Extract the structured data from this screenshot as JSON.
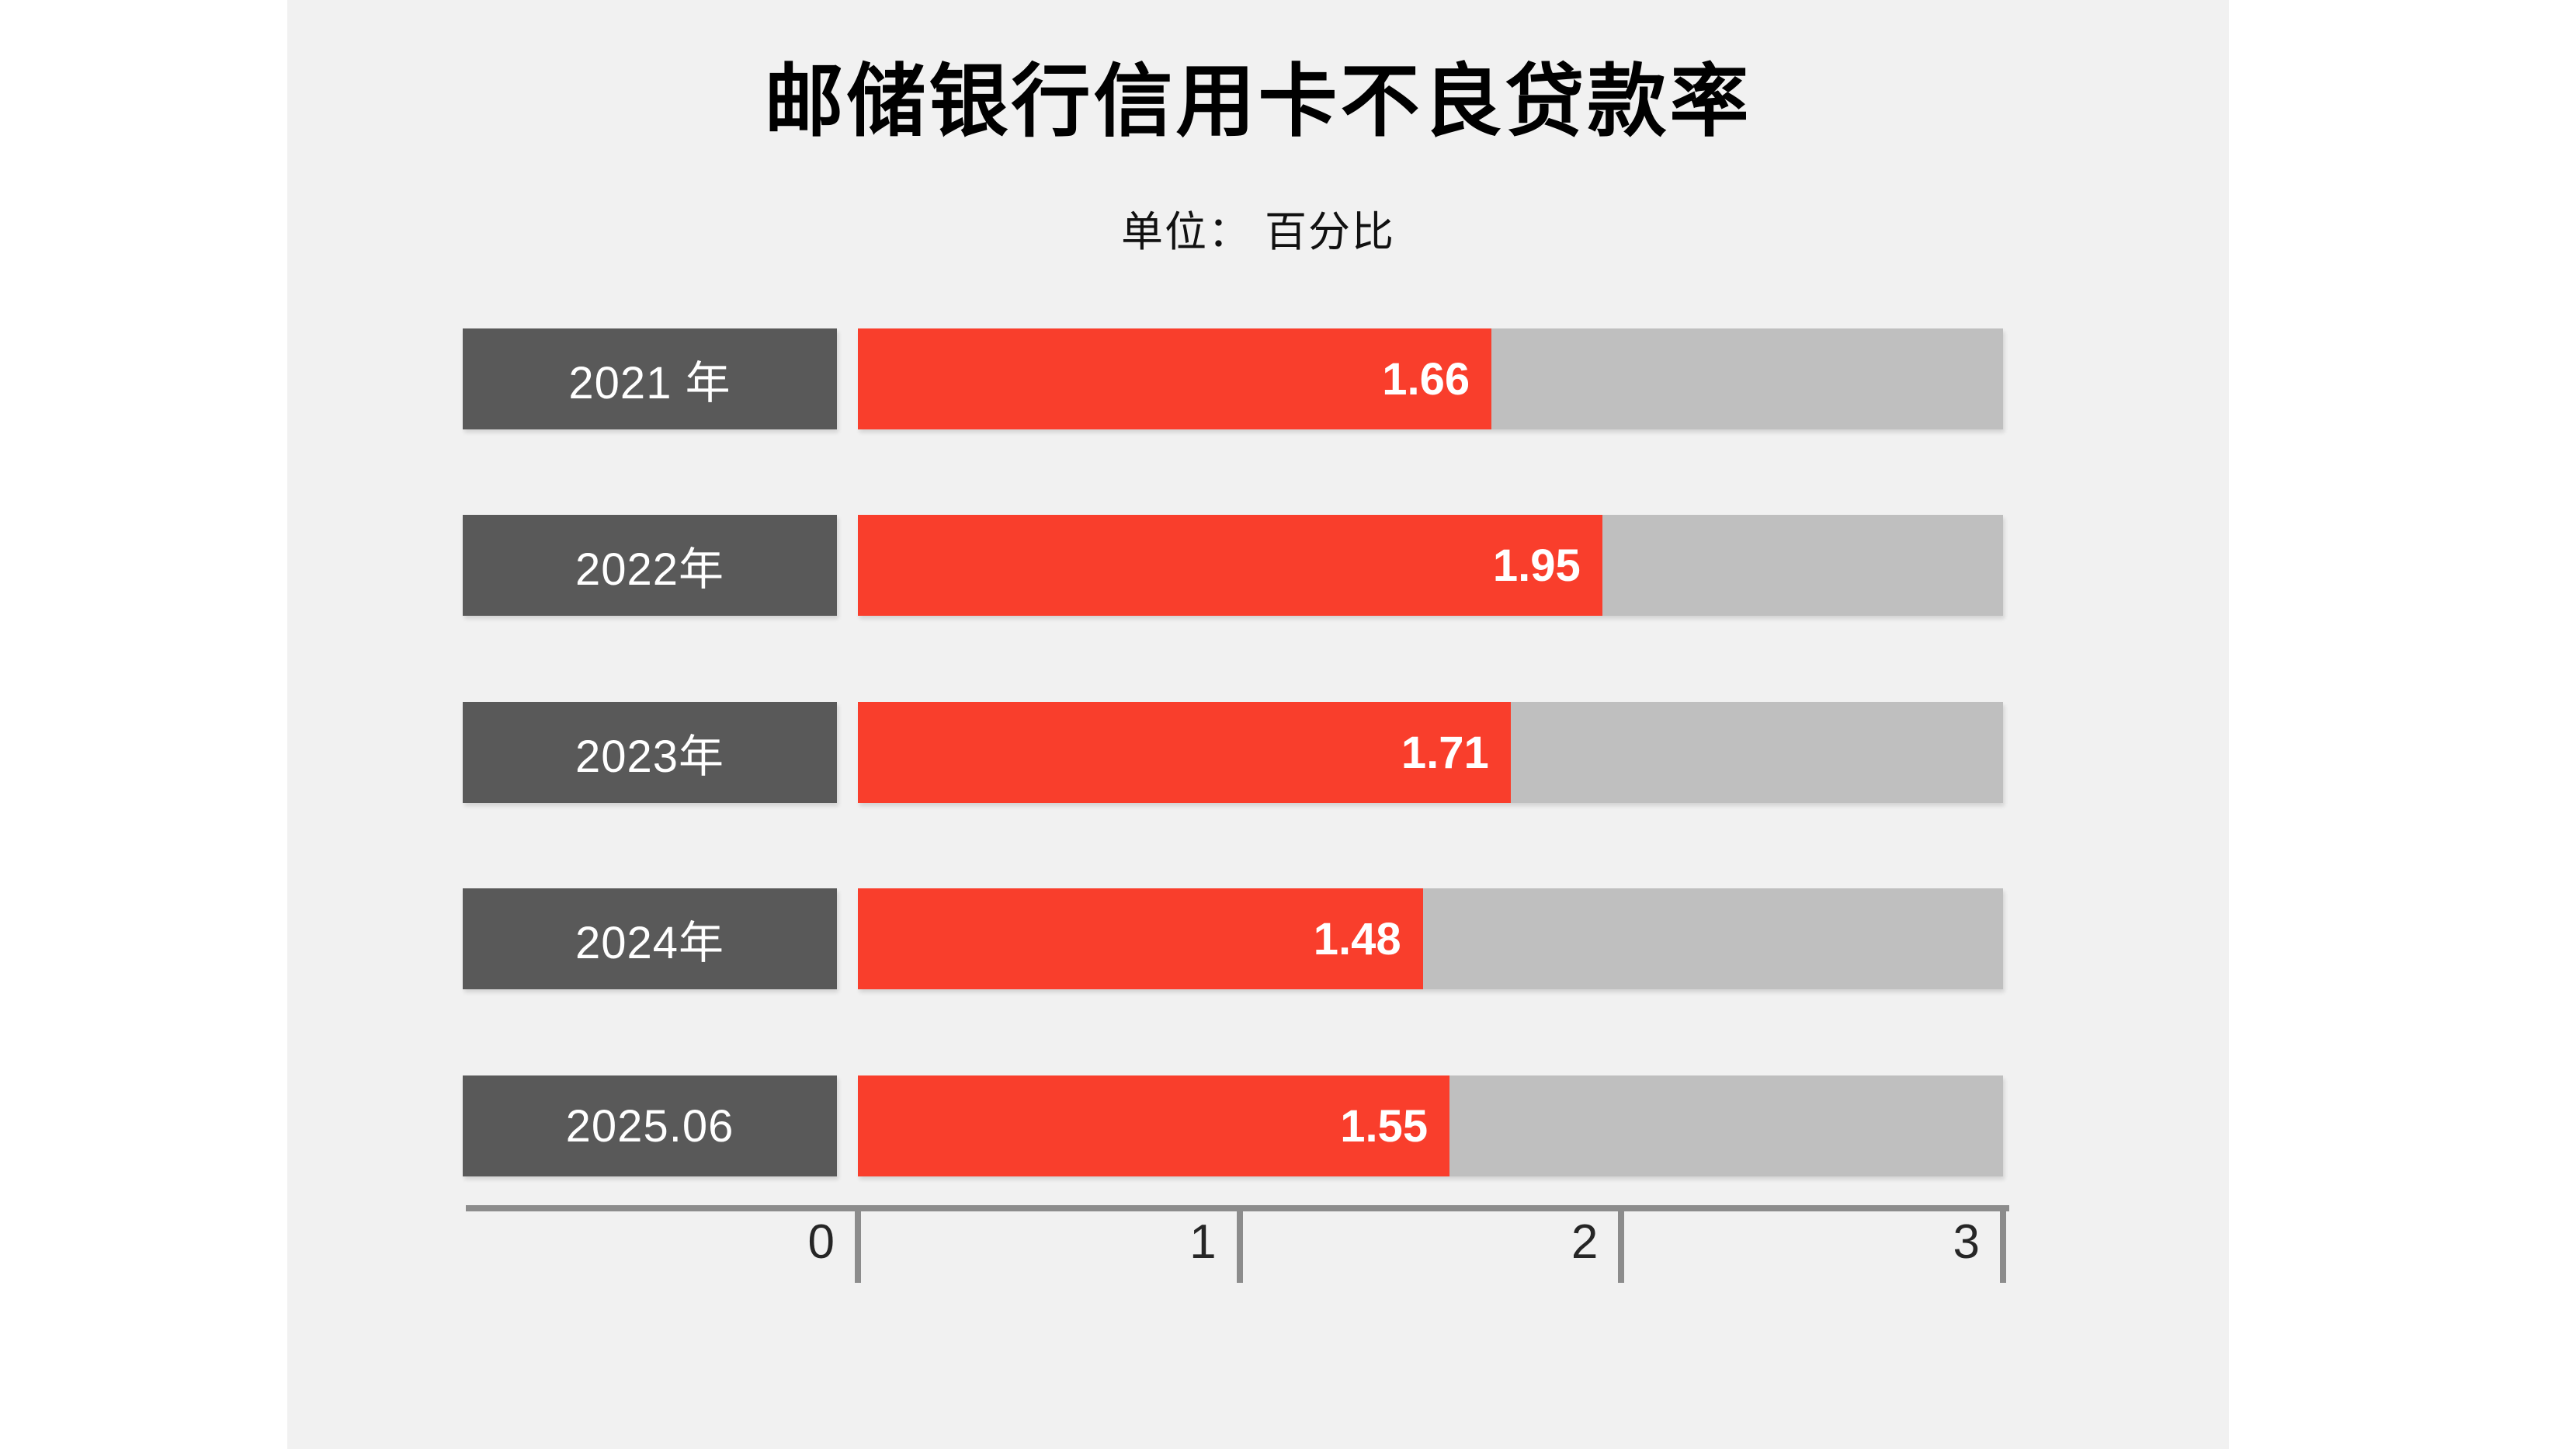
{
  "page": {
    "background": "#ffffff",
    "panel_background": "#f1f1f1"
  },
  "chart_data": {
    "type": "bar",
    "orientation": "horizontal",
    "title": "邮储银行信用卡不良贷款率",
    "subtitle": "单位： 百分比",
    "categories": [
      "2021 年",
      "2022年",
      "2023年",
      "2024年",
      "2025.06"
    ],
    "values": [
      1.66,
      1.95,
      1.71,
      1.48,
      1.55
    ],
    "value_labels": [
      "1.66",
      "1.95",
      "1.71",
      "1.48",
      "1.55"
    ],
    "xlim": [
      0,
      3
    ],
    "x_ticks": [
      "0",
      "1",
      "2",
      "3"
    ],
    "grid": false,
    "legend": false,
    "colors": {
      "bar": "#f93e2c",
      "track": "#bfbfbf",
      "label_box": "#595959",
      "axis": "#8c8c8c",
      "title_text": "#000000",
      "value_text": "#ffffff",
      "category_text": "#ffffff"
    }
  }
}
